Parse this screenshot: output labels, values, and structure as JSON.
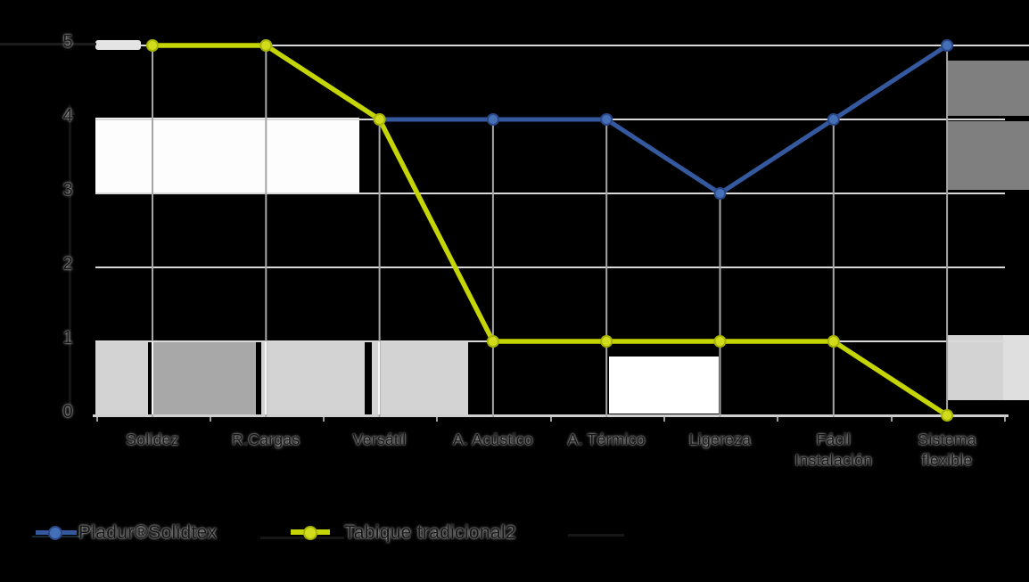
{
  "chart_data": {
    "type": "line",
    "title": "",
    "xlabel": "",
    "ylabel": "",
    "categories": [
      "Solidez",
      "R.Cargas",
      "Versátil",
      "A. Acústico",
      "A. Térmico",
      "Ligereza",
      "Fácil\nInstalación",
      "Sistema\nflexible"
    ],
    "series": [
      {
        "name": "Pladur®Solidtex",
        "values": [
          5,
          5,
          4,
          4,
          4,
          3,
          4,
          5
        ],
        "line_color": "#35599e",
        "marker_color": "#4470b8",
        "marker_edge": "#2a4887"
      },
      {
        "name": "Tabique tradicional2",
        "values": [
          5,
          5,
          4,
          1,
          1,
          1,
          1,
          0
        ],
        "line_color": "#c5d504",
        "marker_color": "#d0dc1c",
        "marker_edge": "#a8b400"
      }
    ],
    "y_ticks": [
      "5",
      "4",
      "3",
      "2",
      "1",
      "0"
    ],
    "ylim": [
      0,
      5
    ],
    "grid": true,
    "legend_position": "bottom-left"
  }
}
